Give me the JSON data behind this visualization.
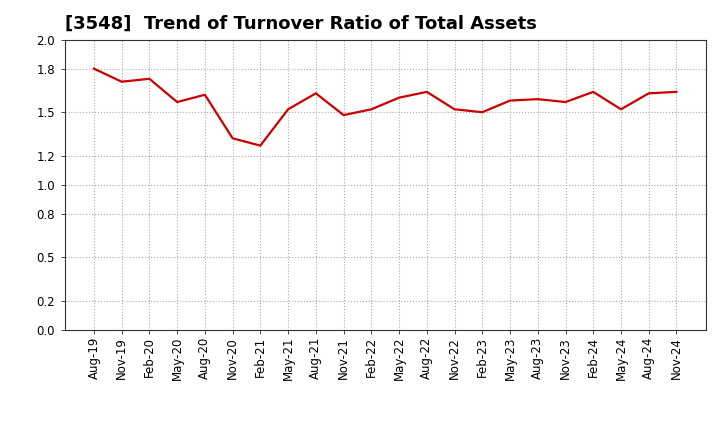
{
  "title": "[3548]  Trend of Turnover Ratio of Total Assets",
  "x_labels": [
    "Aug-19",
    "Nov-19",
    "Feb-20",
    "May-20",
    "Aug-20",
    "Nov-20",
    "Feb-21",
    "May-21",
    "Aug-21",
    "Nov-21",
    "Feb-22",
    "May-22",
    "Aug-22",
    "Nov-22",
    "Feb-23",
    "May-23",
    "Aug-23",
    "Nov-23",
    "Feb-24",
    "May-24",
    "Aug-24",
    "Nov-24"
  ],
  "y_values": [
    1.8,
    1.71,
    1.73,
    1.57,
    1.62,
    1.32,
    1.27,
    1.52,
    1.63,
    1.48,
    1.52,
    1.6,
    1.64,
    1.52,
    1.5,
    1.58,
    1.59,
    1.57,
    1.64,
    1.52,
    1.63,
    1.64
  ],
  "line_color": "#cc0000",
  "bg_color": "#ffffff",
  "plot_bg_color": "#ffffff",
  "grid_color": "#aaaaaa",
  "border_color": "#333333",
  "ylim": [
    0.0,
    2.0
  ],
  "yticks": [
    0.0,
    0.2,
    0.5,
    0.8,
    1.0,
    1.2,
    1.5,
    1.8,
    2.0
  ],
  "title_fontsize": 13,
  "tick_fontsize": 8.5,
  "line_width": 1.6
}
